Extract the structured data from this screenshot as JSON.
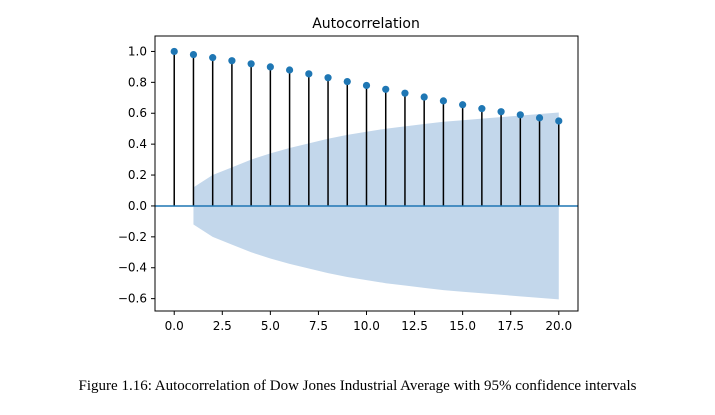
{
  "chart_data": {
    "type": "stem",
    "title": "Autocorrelation",
    "xlabel": "",
    "ylabel": "",
    "xlim": [
      -1,
      21
    ],
    "ylim": [
      -0.68,
      1.1
    ],
    "xticks": [
      0.0,
      2.5,
      5.0,
      7.5,
      10.0,
      12.5,
      15.0,
      17.5,
      20.0
    ],
    "xtick_labels": [
      "0.0",
      "2.5",
      "5.0",
      "7.5",
      "10.0",
      "12.5",
      "15.0",
      "17.5",
      "20.0"
    ],
    "yticks": [
      1.0,
      0.8,
      0.6,
      0.4,
      0.2,
      0.0,
      -0.2,
      -0.4,
      -0.6
    ],
    "ytick_labels": [
      "1.0",
      "0.8",
      "0.6",
      "0.4",
      "0.2",
      "0.0",
      "−0.2",
      "−0.4",
      "−0.6"
    ],
    "lags": [
      0,
      1,
      2,
      3,
      4,
      5,
      6,
      7,
      8,
      9,
      10,
      11,
      12,
      13,
      14,
      15,
      16,
      17,
      18,
      19,
      20
    ],
    "values": [
      1.0,
      0.98,
      0.96,
      0.94,
      0.92,
      0.9,
      0.88,
      0.855,
      0.83,
      0.805,
      0.78,
      0.755,
      0.73,
      0.705,
      0.68,
      0.655,
      0.63,
      0.61,
      0.59,
      0.57,
      0.55
    ],
    "confidence_band": {
      "lags": [
        1,
        2,
        3,
        4,
        5,
        6,
        7,
        8,
        9,
        10,
        11,
        12,
        13,
        14,
        15,
        16,
        17,
        18,
        19,
        20
      ],
      "upper": [
        0.12,
        0.2,
        0.25,
        0.3,
        0.34,
        0.375,
        0.405,
        0.435,
        0.46,
        0.48,
        0.5,
        0.515,
        0.53,
        0.545,
        0.555,
        0.565,
        0.575,
        0.585,
        0.595,
        0.605
      ]
    },
    "colors": {
      "marker": "#1f77b4",
      "stem": "#000000",
      "band": "#c3d7eb",
      "zero_line": "#1f77b4"
    },
    "grid": false
  },
  "caption": "Figure 1.16: Autocorrelation of Dow Jones Industrial Average with 95% confidence intervals"
}
